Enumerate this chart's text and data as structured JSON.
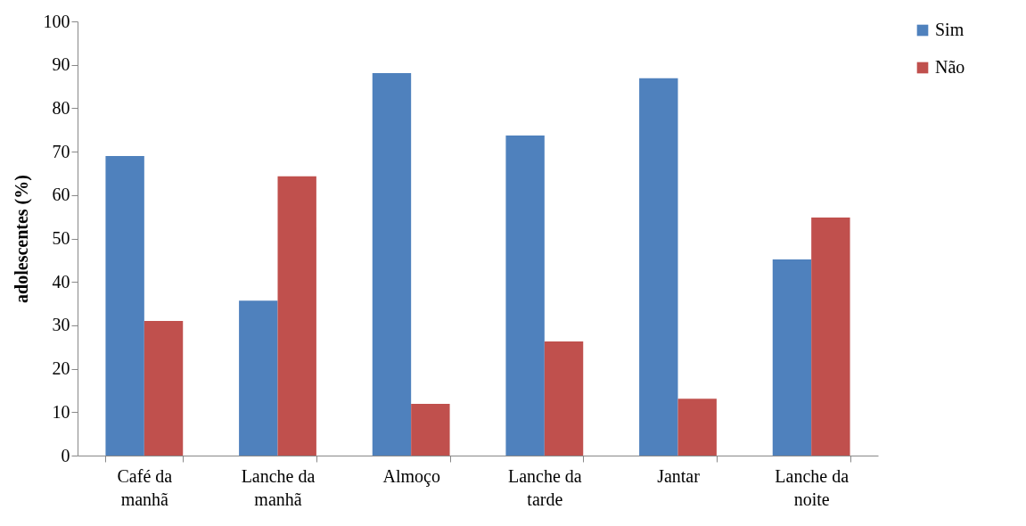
{
  "chart_data": {
    "type": "bar",
    "ylabel": "adolescentes (%)",
    "categories": [
      "Café da manhã",
      "Lanche da manhã",
      "Almoço",
      "Lanche da tarde",
      "Jantar",
      "Lanche da noite"
    ],
    "series": [
      {
        "name": "Sim",
        "color": "#4f81bd",
        "values": [
          69.0,
          35.7,
          88.1,
          73.7,
          86.9,
          45.2
        ]
      },
      {
        "name": "Não",
        "color": "#c0504d",
        "values": [
          31.0,
          64.3,
          11.9,
          26.3,
          13.1,
          54.8
        ]
      }
    ],
    "ylim": [
      0,
      100
    ],
    "yticks": [
      0,
      10,
      20,
      30,
      40,
      50,
      60,
      70,
      80,
      90,
      100
    ],
    "grid": false,
    "legend": "right"
  }
}
